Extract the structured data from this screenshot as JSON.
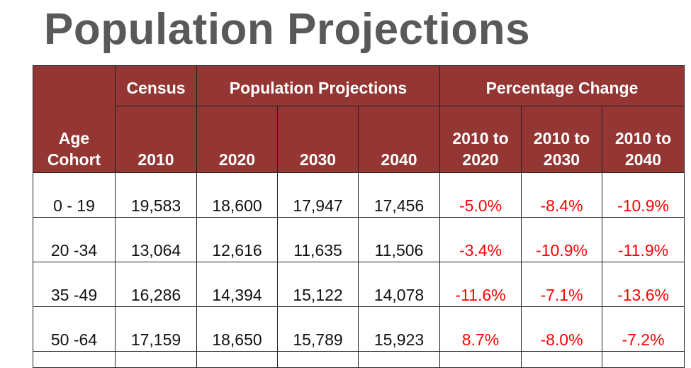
{
  "title": "Population Projections",
  "table": {
    "group_headers": [
      "Census",
      "Population Projections",
      "Percentage Change"
    ],
    "age_header": [
      "Age",
      "Cohort"
    ],
    "columns": [
      "2010",
      "2020",
      "2030",
      "2040"
    ],
    "pct_columns": [
      [
        "2010 to",
        "2020"
      ],
      [
        "2010 to",
        "2030"
      ],
      [
        "2010 to",
        "2040"
      ]
    ],
    "rows": [
      {
        "age": "0 - 19",
        "values": [
          "19,583",
          "18,600",
          "17,947",
          "17,456"
        ],
        "pct": [
          "-5.0%",
          "-8.4%",
          "-10.9%"
        ]
      },
      {
        "age": "20 -34",
        "values": [
          "13,064",
          "12,616",
          "11,635",
          "11,506"
        ],
        "pct": [
          "-3.4%",
          "-10.9%",
          "-11.9%"
        ]
      },
      {
        "age": "35 -49",
        "values": [
          "16,286",
          "14,394",
          "15,122",
          "14,078"
        ],
        "pct": [
          "-11.6%",
          "-7.1%",
          "-13.6%"
        ]
      },
      {
        "age": "50 -64",
        "values": [
          "17,159",
          "18,650",
          "15,789",
          "15,923"
        ],
        "pct": [
          "8.7%",
          "-8.0%",
          "-7.2%"
        ]
      }
    ]
  },
  "colors": {
    "header_bg": "#943634",
    "pct_text": "#ff0000",
    "title": "#595959"
  }
}
